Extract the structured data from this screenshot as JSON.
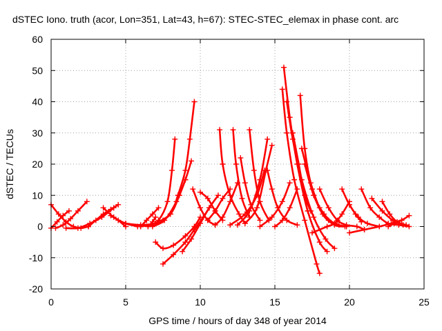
{
  "chart_data": {
    "type": "scatter",
    "title": "dSTEC Iono. truth (acor, Lon=351, Lat=43, h=67): STEC-STEC_elemax in phase cont. arc",
    "xlabel": "GPS time / hours of day 348 of year 2014",
    "ylabel": "dSTEC  / TECUs",
    "xlim": [
      0,
      25
    ],
    "ylim": [
      -20,
      60
    ],
    "xticks": [
      0,
      5,
      10,
      15,
      20,
      25
    ],
    "yticks": [
      -20,
      -10,
      0,
      10,
      20,
      30,
      40,
      50,
      60
    ],
    "grid": true,
    "marker": "+",
    "color": "#ff0000",
    "series": [
      {
        "x": [
          0.0,
          0.5,
          1.0,
          1.5,
          2.0,
          2.5
        ],
        "y": [
          7,
          4,
          1.5,
          0,
          -0.5,
          0
        ]
      },
      {
        "x": [
          0.0,
          0.4,
          0.8,
          1.2
        ],
        "y": [
          -0.5,
          1.5,
          3.5,
          5
        ]
      },
      {
        "x": [
          0.3,
          0.8,
          1.3,
          1.8,
          2.4
        ],
        "y": [
          -0.5,
          0.5,
          2.5,
          5,
          8
        ]
      },
      {
        "x": [
          1.0,
          1.8,
          2.6,
          3.4,
          4.2
        ],
        "y": [
          -0.5,
          -0.5,
          1,
          3,
          6
        ]
      },
      {
        "x": [
          2.5,
          3.0,
          3.5,
          4.0,
          4.5
        ],
        "y": [
          0,
          2,
          4,
          5.5,
          7
        ]
      },
      {
        "x": [
          3.5,
          4.2,
          5.0,
          5.8
        ],
        "y": [
          6,
          3,
          1,
          0
        ]
      },
      {
        "x": [
          4.0,
          4.5,
          5.0
        ],
        "y": [
          3.5,
          2,
          0
        ]
      },
      {
        "x": [
          6.0,
          6.4,
          6.8,
          7.2
        ],
        "y": [
          0,
          2,
          4,
          6
        ]
      },
      {
        "x": [
          5.0,
          6.0,
          7.0,
          7.5
        ],
        "y": [
          1,
          0.5,
          1,
          2
        ]
      },
      {
        "x": [
          6.5,
          6.8,
          7.0
        ],
        "y": [
          0,
          1.5,
          3
        ]
      },
      {
        "x": [
          6.0,
          7.0,
          8.0,
          8.5,
          9.0,
          9.3,
          9.6
        ],
        "y": [
          0,
          1,
          4,
          10,
          18,
          28,
          40
        ]
      },
      {
        "x": [
          6.5,
          7.2,
          7.8,
          8.1,
          8.3
        ],
        "y": [
          0,
          2,
          8,
          18,
          28
        ]
      },
      {
        "x": [
          6.8,
          7.6,
          8.4,
          9.0,
          9.4
        ],
        "y": [
          0,
          2,
          8,
          15,
          21
        ]
      },
      {
        "x": [
          7.0,
          8.0,
          8.6,
          9.0
        ],
        "y": [
          1,
          4,
          10,
          15
        ]
      },
      {
        "x": [
          7.0,
          7.5,
          8.2,
          9.0,
          9.6,
          10.0
        ],
        "y": [
          -5,
          -7,
          -6,
          -3,
          0,
          3
        ]
      },
      {
        "x": [
          7.5,
          8.2,
          9.0,
          9.6,
          10.2,
          10.6
        ],
        "y": [
          -12,
          -9,
          -5,
          -1,
          3,
          6
        ]
      },
      {
        "x": [
          8.8,
          9.4,
          10.0,
          10.6,
          11.2
        ],
        "y": [
          -8,
          -4,
          1,
          6,
          10
        ]
      },
      {
        "x": [
          9.5,
          10.0,
          10.5,
          11.0
        ],
        "y": [
          12,
          6,
          2,
          0.5
        ]
      },
      {
        "x": [
          10.0,
          10.5,
          11.0,
          11.5
        ],
        "y": [
          11,
          9,
          5,
          2
        ]
      },
      {
        "x": [
          10.5,
          11.0,
          11.5,
          12.0
        ],
        "y": [
          2,
          5,
          9,
          12
        ]
      },
      {
        "x": [
          11.0,
          11.5,
          12.0,
          12.5
        ],
        "y": [
          0.5,
          3,
          8,
          14
        ]
      },
      {
        "x": [
          11.3,
          11.5,
          12.0,
          12.6,
          13.0
        ],
        "y": [
          31,
          20,
          10,
          4,
          1
        ]
      },
      {
        "x": [
          12.2,
          12.4,
          12.8,
          13.3
        ],
        "y": [
          31,
          20,
          9,
          3
        ]
      },
      {
        "x": [
          12.7,
          13.0,
          13.4,
          14.0
        ],
        "y": [
          22,
          14,
          7,
          2
        ]
      },
      {
        "x": [
          13.3,
          13.6,
          14.0,
          14.6
        ],
        "y": [
          31,
          18,
          8,
          2
        ]
      },
      {
        "x": [
          12.0,
          13.0,
          13.8,
          14.3
        ],
        "y": [
          0.5,
          4,
          10,
          18
        ]
      },
      {
        "x": [
          12.5,
          13.3,
          14.0,
          14.5
        ],
        "y": [
          0.5,
          5,
          15,
          28
        ]
      },
      {
        "x": [
          13.0,
          13.8,
          14.4,
          14.8
        ],
        "y": [
          1,
          6,
          18,
          26
        ]
      },
      {
        "x": [
          14.5,
          14.8,
          15.2,
          15.8,
          16.5
        ],
        "y": [
          18,
          12,
          6,
          2,
          0.5
        ]
      },
      {
        "x": [
          15.5,
          15.8,
          16.3,
          17.0,
          17.8,
          18.0
        ],
        "y": [
          44,
          30,
          15,
          2,
          -12,
          -15
        ]
      },
      {
        "x": [
          15.6,
          16.0,
          16.5,
          17.2,
          18.0,
          18.5
        ],
        "y": [
          51,
          35,
          20,
          5,
          -5,
          -8
        ]
      },
      {
        "x": [
          15.8,
          16.2,
          16.8,
          17.6,
          18.4,
          19.0
        ],
        "y": [
          40,
          28,
          15,
          3,
          -4,
          -7
        ]
      },
      {
        "x": [
          16.7,
          17.0,
          17.5,
          18.2,
          19.0,
          19.7
        ],
        "y": [
          42,
          25,
          12,
          4,
          0.5,
          0
        ]
      },
      {
        "x": [
          16.2,
          16.6,
          17.0,
          17.4
        ],
        "y": [
          30,
          20,
          10,
          5
        ]
      },
      {
        "x": [
          16.8,
          17.4,
          18.0,
          18.6,
          19.3
        ],
        "y": [
          25,
          14,
          6,
          2,
          0.5
        ]
      },
      {
        "x": [
          17.0,
          17.6,
          18.3,
          19.0,
          19.8
        ],
        "y": [
          20,
          10,
          4,
          1,
          0
        ]
      },
      {
        "x": [
          15.0,
          15.5,
          16.0,
          16.5
        ],
        "y": [
          0,
          2,
          6,
          12
        ]
      },
      {
        "x": [
          14.0,
          14.8,
          15.5,
          16.0
        ],
        "y": [
          0,
          3,
          8,
          14
        ]
      },
      {
        "x": [
          18.0,
          18.6,
          19.2,
          19.8,
          20.5,
          21.0
        ],
        "y": [
          12,
          6,
          2,
          0.5,
          0,
          -1
        ]
      },
      {
        "x": [
          19.5,
          20.0,
          20.6,
          21.2,
          22.0
        ],
        "y": [
          12,
          7,
          3,
          1,
          0
        ]
      },
      {
        "x": [
          20.0,
          20.4,
          20.8
        ],
        "y": [
          7,
          4,
          1.5
        ]
      },
      {
        "x": [
          20.8,
          21.4,
          22.0,
          22.6,
          23.3,
          24.0
        ],
        "y": [
          12,
          6,
          3,
          1,
          0.5,
          0
        ]
      },
      {
        "x": [
          21.5,
          22.2,
          22.9,
          23.6
        ],
        "y": [
          9,
          5,
          2,
          0.5
        ]
      },
      {
        "x": [
          22.2,
          22.7,
          23.2,
          23.8
        ],
        "y": [
          8,
          4,
          1.5,
          0.5
        ]
      },
      {
        "x": [
          22.6,
          23.0,
          23.5,
          24.0
        ],
        "y": [
          0,
          1,
          2,
          3.5
        ]
      },
      {
        "x": [
          20.0,
          21.0,
          22.0,
          22.8,
          23.5
        ],
        "y": [
          -2,
          -1,
          0,
          1,
          2
        ]
      },
      {
        "x": [
          17.5,
          18.5,
          19.0,
          19.5,
          20.0
        ],
        "y": [
          -2,
          0,
          1,
          4,
          8
        ]
      }
    ]
  }
}
